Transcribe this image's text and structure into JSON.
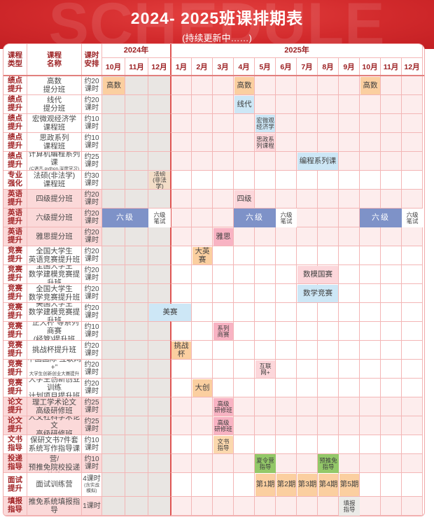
{
  "header": {
    "title": "2024- 2025班课排期表",
    "subtitle": "(持续更新中……)",
    "watermark": "SCHEDULE",
    "banner_color": "#d22a2c"
  },
  "table": {
    "col_headers": {
      "type_lines": [
        "课程",
        "类型"
      ],
      "name_lines": [
        "课程",
        "名称"
      ],
      "hours_lines": [
        "课时",
        "安排"
      ],
      "y2024": "2024年",
      "y2025": "2025年"
    },
    "months_2024": [
      "10月",
      "11月",
      "12月"
    ],
    "months_2025": [
      "1月",
      "2月",
      "3月",
      "4月",
      "5月",
      "6月",
      "7月",
      "8月",
      "9月",
      "10月",
      "11月",
      "12月"
    ],
    "colors": {
      "peach": "#fbcfa0",
      "blue_light": "#cde7f6",
      "blue": "#7e92c8",
      "pink_light": "#fcd7db",
      "rose": "#f8b3c3",
      "tan": "#f3ddc7",
      "white": "#ffffff",
      "green": "#93c868",
      "gray_light": "#ebebe8",
      "peach_light": "#fbd8ae",
      "past_month_gray": "#e9e6e3",
      "band_pink": "#fdeded"
    },
    "rows": [
      {
        "type": [
          "绩点",
          "提升"
        ],
        "name": [
          "高数",
          "提分班"
        ],
        "hours": [
          "约20",
          "课时"
        ],
        "label_band": "white",
        "band": "pink",
        "chips": [
          {
            "lines": [
              "高数"
            ],
            "month": 0,
            "span": 1,
            "color": "peach"
          },
          {
            "lines": [
              "高数"
            ],
            "month": 6,
            "span": 1,
            "color": "peach"
          },
          {
            "lines": [
              "高数"
            ],
            "month": 12,
            "span": 1,
            "color": "peach"
          }
        ]
      },
      {
        "type": [
          "绩点",
          "提升"
        ],
        "name": [
          "线代",
          "提分班"
        ],
        "hours": [
          "约20",
          "课时"
        ],
        "label_band": "white",
        "band": "pink",
        "chips": [
          {
            "lines": [
              "线代"
            ],
            "month": 6,
            "span": 1,
            "color": "blue_light"
          }
        ]
      },
      {
        "type": [
          "绩点",
          "提升"
        ],
        "name": [
          "宏微观经济学",
          "课程班"
        ],
        "hours": [
          "约10",
          "课时"
        ],
        "label_band": "white",
        "band": "pink",
        "chips": [
          {
            "lines": [
              "宏微观",
              "经济学"
            ],
            "month": 7,
            "span": 1,
            "color": "blue_light"
          }
        ]
      },
      {
        "type": [
          "绩点",
          "提升"
        ],
        "name": [
          "思政系列",
          "课程班"
        ],
        "hours": [
          "约10",
          "课时"
        ],
        "label_band": "white",
        "band": "pink",
        "chips": [
          {
            "lines": [
              "思政系",
              "列课程"
            ],
            "month": 7,
            "span": 1,
            "color": "pink_light"
          }
        ]
      },
      {
        "type": [
          "绩点",
          "提升"
        ],
        "name": [
          "计算机编程系列课",
          "(C语言,python,深度学习)"
        ],
        "name_small": [
          1
        ],
        "hours": [
          "约25",
          "课时"
        ],
        "label_band": "white",
        "band": "pink",
        "chips": [
          {
            "lines": [
              "编程系列课"
            ],
            "month": 9,
            "span": 2,
            "color": "blue_light"
          }
        ]
      },
      {
        "type": [
          "专业",
          "强化"
        ],
        "name": [
          "法硕(非法学)",
          "课程班"
        ],
        "hours": [
          "约30",
          "课时"
        ],
        "label_band": "white",
        "band": "white",
        "chips": [
          {
            "lines": [
              "法硕",
              "(非法学)"
            ],
            "month": 2,
            "span": 1,
            "color": "tan"
          }
        ]
      },
      {
        "type": [
          "英语",
          "提升"
        ],
        "name": [
          "四级提分班"
        ],
        "hours": [
          "约20",
          "课时"
        ],
        "label_band": "pink",
        "band": "pink",
        "chips": [
          {
            "lines": [
              "四级"
            ],
            "month": 6,
            "span": 1,
            "color": "pink_light"
          }
        ]
      },
      {
        "type": [
          "英语",
          "提升"
        ],
        "name": [
          "六级提分班"
        ],
        "hours": [
          "约20",
          "课时"
        ],
        "label_band": "pink",
        "band": "pink",
        "chips": [
          {
            "lines": [
              "六级"
            ],
            "month": 0,
            "span": 2,
            "color": "blue"
          },
          {
            "lines": [
              "六级",
              "笔试"
            ],
            "month": 2,
            "span": 1,
            "color": "white"
          },
          {
            "lines": [
              "六级"
            ],
            "month": 6,
            "span": 2,
            "color": "blue"
          },
          {
            "lines": [
              "六级",
              "笔试"
            ],
            "month": 8,
            "span": 1,
            "color": "white"
          },
          {
            "lines": [
              "六级"
            ],
            "month": 12,
            "span": 2,
            "color": "blue"
          },
          {
            "lines": [
              "六级",
              "笔试"
            ],
            "month": 14,
            "span": 1,
            "color": "white"
          }
        ]
      },
      {
        "type": [
          "英语",
          "提升"
        ],
        "name": [
          "雅思提分班"
        ],
        "hours": [
          "约20",
          "课时"
        ],
        "label_band": "pink",
        "band": "pink",
        "chips": [
          {
            "lines": [
              "雅思"
            ],
            "month": 5,
            "span": 1,
            "color": "rose"
          }
        ]
      },
      {
        "type": [
          "竞赛",
          "提升"
        ],
        "name": [
          "全国大学生",
          "英语竞赛提升班"
        ],
        "hours": [
          "约20",
          "课时"
        ],
        "label_band": "white",
        "band": "white",
        "chips": [
          {
            "lines": [
              "大英赛"
            ],
            "month": 4,
            "span": 1,
            "color": "peach"
          }
        ]
      },
      {
        "type": [
          "竞赛",
          "提升"
        ],
        "name": [
          "全国大学生",
          "数学建模竞赛提升班"
        ],
        "hours": [
          "约20",
          "课时"
        ],
        "label_band": "white",
        "band": "white",
        "chips": [
          {
            "lines": [
              "数模国赛"
            ],
            "month": 9,
            "span": 2,
            "color": "pink_light"
          }
        ]
      },
      {
        "type": [
          "竞赛",
          "提升"
        ],
        "name": [
          "全国大学生",
          "数学竞赛提升班"
        ],
        "hours": [
          "约20",
          "课时"
        ],
        "label_band": "white",
        "band": "white",
        "chips": [
          {
            "lines": [
              "数学竞赛"
            ],
            "month": 9,
            "span": 2,
            "color": "blue_light"
          }
        ]
      },
      {
        "type": [
          "竞赛",
          "提升"
        ],
        "name": [
          "美国大学生",
          "数学建模竞赛提升班"
        ],
        "hours": [
          "约20",
          "课时"
        ],
        "label_band": "white",
        "band": "white",
        "chips": [
          {
            "lines": [
              "美赛"
            ],
            "month": 2,
            "span": 2,
            "color": "blue_light"
          }
        ]
      },
      {
        "type": [
          "竞赛",
          "提升"
        ],
        "name": [
          "“正大杯”等系列商赛",
          "(经管)提升班"
        ],
        "hours": [
          "约10",
          "课时"
        ],
        "label_band": "white",
        "band": "white",
        "chips": [
          {
            "lines": [
              "系列",
              "商赛"
            ],
            "month": 5,
            "span": 1,
            "color": "rose"
          }
        ]
      },
      {
        "type": [
          "竞赛",
          "提升"
        ],
        "name": [
          "挑战杯提升班"
        ],
        "hours": [
          "约20",
          "课时"
        ],
        "label_band": "white",
        "band": "white",
        "chips": [
          {
            "lines": [
              "挑战杯"
            ],
            "month": 3,
            "span": 1,
            "color": "peach"
          }
        ]
      },
      {
        "type": [
          "竞赛",
          "提升"
        ],
        "name": [
          "中国国际“互联网+”",
          "大学生创新创业大赛提升班"
        ],
        "name_small": [
          1
        ],
        "hours": [
          "约20",
          "课时"
        ],
        "label_band": "white",
        "band": "white",
        "chips": [
          {
            "lines": [
              "互联",
              "网+"
            ],
            "month": 7,
            "span": 1,
            "color": "pink_light"
          }
        ]
      },
      {
        "type": [
          "竞赛",
          "提升"
        ],
        "name": [
          "大学生创新创业训练",
          "计划项目提升班"
        ],
        "hours": [
          "约20",
          "课时"
        ],
        "label_band": "white",
        "band": "white",
        "chips": [
          {
            "lines": [
              "大创"
            ],
            "month": 4,
            "span": 1,
            "color": "peach"
          }
        ]
      },
      {
        "type": [
          "论文",
          "提升"
        ],
        "name": [
          "理工学术论文",
          "高级研修班"
        ],
        "hours": [
          "约25",
          "课时"
        ],
        "label_band": "pink",
        "band": "pink",
        "chips": [
          {
            "lines": [
              "高级",
              "研修班"
            ],
            "month": 5,
            "span": 1,
            "color": "rose"
          }
        ]
      },
      {
        "type": [
          "论文",
          "提升"
        ],
        "name": [
          "人文社科学术论文",
          "高级研修班"
        ],
        "hours": [
          "约25",
          "课时"
        ],
        "label_band": "pink",
        "band": "pink",
        "chips": [
          {
            "lines": [
              "高级",
              "研修班"
            ],
            "month": 5,
            "span": 1,
            "color": "rose"
          }
        ]
      },
      {
        "type": [
          "文书",
          "指导"
        ],
        "name": [
          "保研文书7件套",
          "系统写作指导课"
        ],
        "hours": [
          "约10",
          "课时"
        ],
        "label_band": "white",
        "band": "white",
        "chips": [
          {
            "lines": [
              "文书",
              "指导"
            ],
            "month": 5,
            "span": 1,
            "color": "peach_light"
          }
        ]
      },
      {
        "type": [
          "投递",
          "指导"
        ],
        "name": [
          "推免规划及夏令营/",
          "预推免院校投递策略"
        ],
        "hours": [
          "约10",
          "课时"
        ],
        "label_band": "pink",
        "band": "pink",
        "chips": [
          {
            "lines": [
              "夏令营",
              "指导"
            ],
            "month": 7,
            "span": 1,
            "color": "green"
          },
          {
            "lines": [
              "预推免",
              "指导"
            ],
            "month": 10,
            "span": 1,
            "color": "green"
          }
        ]
      },
      {
        "type": [
          "面试",
          "提升"
        ],
        "name": [
          "面试训练营"
        ],
        "hours": [
          "4课时",
          "(含实战",
          "模拟)"
        ],
        "hours_small": [
          1,
          2
        ],
        "tall": true,
        "label_band": "white",
        "band": "white",
        "chips": [
          {
            "lines": [
              "第1期"
            ],
            "month": 7,
            "span": 1,
            "color": "peach"
          },
          {
            "lines": [
              "第2期"
            ],
            "month": 8,
            "span": 1,
            "color": "peach"
          },
          {
            "lines": [
              "第3期"
            ],
            "month": 9,
            "span": 1,
            "color": "peach"
          },
          {
            "lines": [
              "第4期"
            ],
            "month": 10,
            "span": 1,
            "color": "peach"
          },
          {
            "lines": [
              "第5期"
            ],
            "month": 11,
            "span": 1,
            "color": "peach"
          }
        ]
      },
      {
        "type": [
          "填报",
          "指导"
        ],
        "name": [
          "推免系统填报指导"
        ],
        "hours": [
          "1课时"
        ],
        "label_band": "pink",
        "band": "pink",
        "chips": [
          {
            "lines": [
              "填报",
              "指导"
            ],
            "month": 11,
            "span": 1,
            "color": "gray_light"
          }
        ]
      }
    ]
  }
}
